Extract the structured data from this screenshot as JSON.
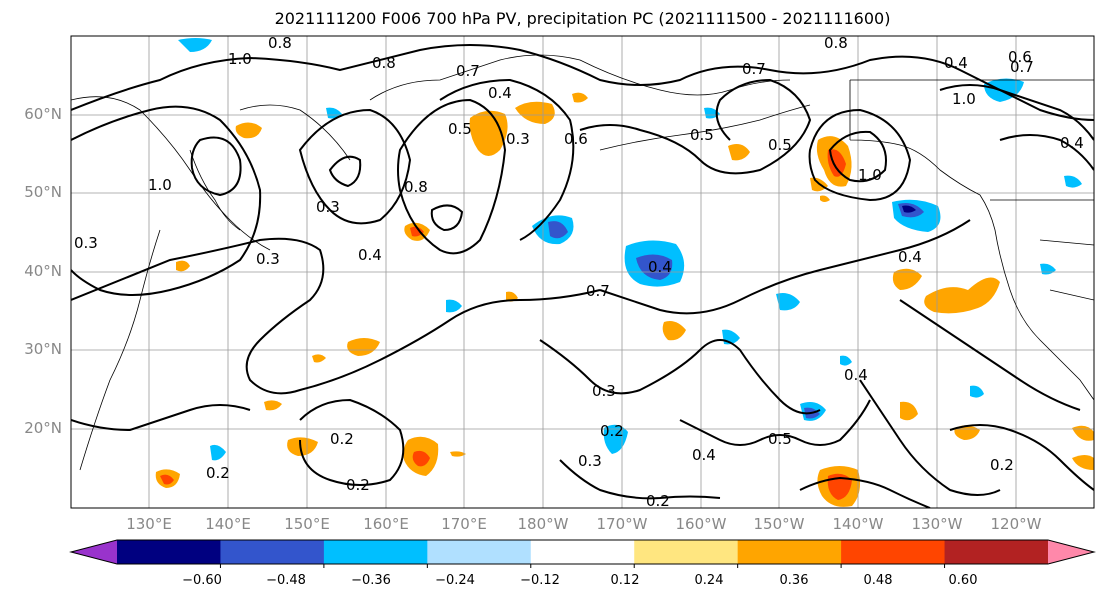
{
  "title": "2021111200 F006 700 hPa PV, precipitation PC (2021111500 - 2021111600)",
  "latitude_labels": [
    "60°N",
    "50°N",
    "40°N",
    "30°N",
    "20°N"
  ],
  "longitude_labels": [
    "130°E",
    "140°E",
    "150°E",
    "160°E",
    "170°E",
    "180°W",
    "170°W",
    "160°W",
    "150°W",
    "140°W",
    "130°W",
    "120°W"
  ],
  "colorbar": {
    "tick_labels": [
      "−0.60",
      "−0.48",
      "−0.36",
      "−0.24",
      "−0.12",
      "0.12",
      "0.24",
      "0.36",
      "0.48",
      "0.60"
    ],
    "colors": [
      "#9933cc",
      "#000080",
      "#3355cc",
      "#00bfff",
      "#b0e0ff",
      "#ffffff",
      "#ffe680",
      "#ffa500",
      "#ff4500",
      "#b22222",
      "#ff88aa"
    ]
  },
  "contour_labels": [
    "1.0",
    "0.8",
    "0.8",
    "0.7",
    "0.4",
    "0.3",
    "0.6",
    "0.7",
    "0.8",
    "0.4",
    "1.0",
    "0.7",
    "0.5",
    "0.3",
    "0.8",
    "0.3",
    "0.4",
    "1.0",
    "0.5",
    "0.5",
    "0.4",
    "0.7",
    "0.4",
    "0.3",
    "0.2",
    "0.3",
    "0.2",
    "0.2",
    "0.4",
    "0.2",
    "0.5",
    "0.4",
    "0.2",
    "0.3",
    "0.2",
    "0.6",
    "1.0",
    "0.4"
  ]
}
